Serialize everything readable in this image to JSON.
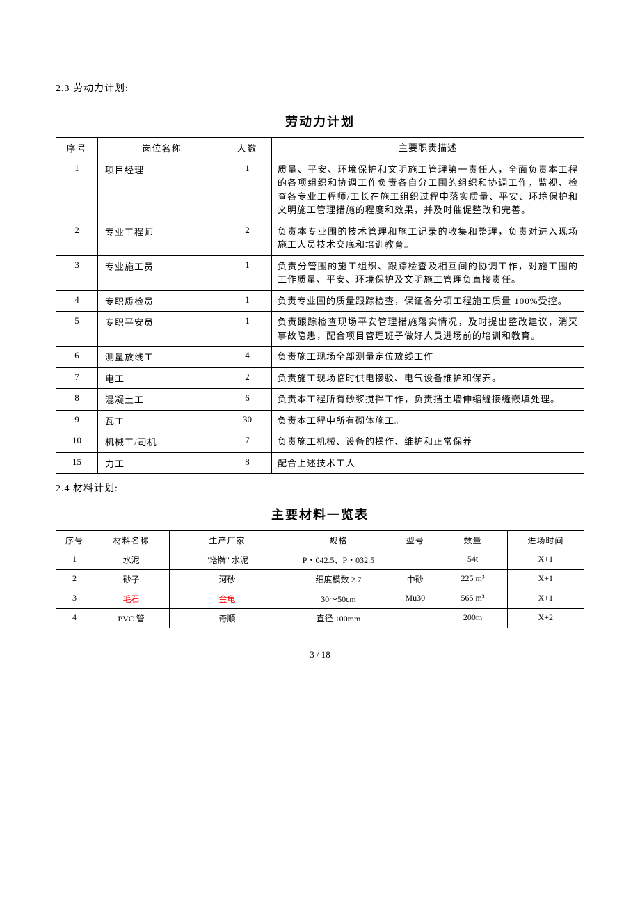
{
  "sections": {
    "labor": "2.3 劳动力计划:",
    "material": "2.4 材料计划:"
  },
  "labor_table": {
    "title": "劳动力计划",
    "headers": {
      "seq": "序号",
      "position": "岗位名称",
      "count": "人数",
      "desc": "主要职责描述"
    },
    "rows": [
      {
        "seq": "1",
        "pos": "项目经理",
        "cnt": "1",
        "desc": "质量、平安、环境保护和文明施工管理第一责任人，全面负责本工程的各项组织和协调工作负责各自分工围的组织和协调工作，监视、检查各专业工程师/工长在施工组织过程中落实质量、平安、环境保护和文明施工管理措施的程度和效果，并及时催促整改和完善。"
      },
      {
        "seq": "2",
        "pos": "专业工程师",
        "cnt": "2",
        "desc": "负责本专业围的技术管理和施工记录的收集和整理，负责对进入现场施工人员技术交底和培训教育。"
      },
      {
        "seq": "3",
        "pos": "专业施工员",
        "cnt": "1",
        "desc": "负责分管围的施工组织、跟踪检查及相互间的协调工作，对施工围的工作质量、平安、环境保护及文明施工管理负直接责任。"
      },
      {
        "seq": "4",
        "pos": "专职质检员",
        "cnt": "1",
        "desc": "负责专业围的质量跟踪检查，保证各分项工程施工质量 100%受控。"
      },
      {
        "seq": "5",
        "pos": "专职平安员",
        "cnt": "1",
        "desc": "负责跟踪检查现场平安管理措施落实情况，及时提出整改建议，消灭事故隐患，配合项目管理班子做好人员进场前的培训和教育。"
      },
      {
        "seq": "6",
        "pos": "测量放线工",
        "cnt": "4",
        "desc": "负责施工现场全部测量定位放线工作"
      },
      {
        "seq": "7",
        "pos": "电工",
        "cnt": "2",
        "desc": "负责施工现场临时供电接驳、电气设备维护和保养。"
      },
      {
        "seq": "8",
        "pos": "混凝土工",
        "cnt": "6",
        "desc": "负责本工程所有砂浆搅拌工作，负责挡土墙伸缩缝接缝嵌填处理。"
      },
      {
        "seq": "9",
        "pos": "瓦工",
        "cnt": "30",
        "desc": "负责本工程中所有砌体施工。"
      },
      {
        "seq": "10",
        "pos": "机械工/司机",
        "cnt": "7",
        "desc": "负责施工机械、设备的操作、维护和正常保养"
      },
      {
        "seq": "15",
        "pos": "力工",
        "cnt": "8",
        "desc": "配合上述技术工人"
      }
    ]
  },
  "material_table": {
    "title": "主要材料一览表",
    "headers": {
      "seq": "序号",
      "name": "材料名称",
      "factory": "生产厂家",
      "spec": "规格",
      "model": "型号",
      "qty": "数量",
      "time": "进场时间"
    },
    "rows": [
      {
        "seq": "1",
        "name": "水泥",
        "fact": "\"塔牌\" 水泥",
        "spec": "P・042.5、P・032.5",
        "model": "",
        "qty": "54t",
        "time": "X+1",
        "red": false
      },
      {
        "seq": "2",
        "name": "砂子",
        "fact": "河砂",
        "spec": "细度模数 2.7",
        "model": "中砂",
        "qty": "225 m³",
        "time": "X+1",
        "red": false
      },
      {
        "seq": "3",
        "name": "毛石",
        "fact": "金龟",
        "spec": "30～50cm",
        "model": "Mu30",
        "qty": "565 m³",
        "time": "X+1",
        "red": true
      },
      {
        "seq": "4",
        "name": "PVC 管",
        "fact": "奇顺",
        "spec": "直径 100mm",
        "model": "",
        "qty": "200m",
        "time": "X+2",
        "red": false
      }
    ]
  },
  "page_number": "3 / 18"
}
